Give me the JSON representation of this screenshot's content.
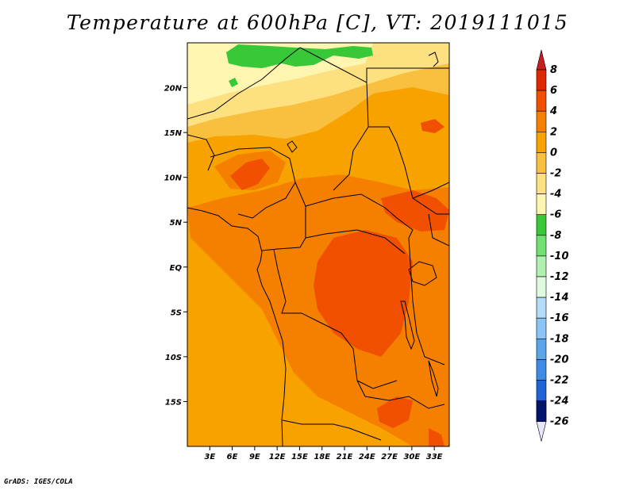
{
  "chart_data": {
    "type": "heatmap",
    "title": "Temperature at 600hPa [C], VT: 2019111015",
    "variable": "Temperature",
    "units": "C",
    "level": "600hPa",
    "valid_time": "2019111015",
    "credit": "GrADS: IGES/COLA",
    "xaxis": {
      "range": [
        0,
        35
      ],
      "ticks": [
        3,
        6,
        9,
        12,
        15,
        18,
        21,
        24,
        27,
        30,
        33
      ],
      "tick_labels": [
        "3E",
        "6E",
        "9E",
        "12E",
        "15E",
        "18E",
        "21E",
        "24E",
        "27E",
        "30E",
        "33E"
      ]
    },
    "yaxis": {
      "range": [
        -20,
        25
      ],
      "ticks": [
        20,
        15,
        10,
        5,
        0,
        -5,
        -10,
        -15
      ],
      "tick_labels": [
        "20N",
        "15N",
        "10N",
        "5N",
        "EQ",
        "5S",
        "10S",
        "15S"
      ]
    },
    "colorbar": {
      "levels": [
        8,
        6,
        4,
        2,
        0,
        -2,
        -4,
        -6,
        -8,
        -10,
        -12,
        -14,
        -16,
        -18,
        -20,
        -22,
        -24,
        -26
      ],
      "labels": [
        "8",
        "6",
        "4",
        "2",
        "0",
        "-2",
        "-4",
        "-6",
        "-8",
        "-10",
        "-12",
        "-14",
        "-16",
        "-18",
        "-20",
        "-22",
        "-24",
        "-26"
      ],
      "colors": [
        "#e02800",
        "#f05000",
        "#f58000",
        "#f8a200",
        "#f9c040",
        "#fde080",
        "#fef5b0",
        "#38c838",
        "#70e070",
        "#b0f0b0",
        "#e0fae0",
        "#b4dcf8",
        "#8cc4f5",
        "#5aa5ec",
        "#3c8ce6",
        "#1e64d2",
        "#0a3cb4",
        "#00146e"
      ],
      "top_overflow_color": "#c81e1e",
      "bottom_overflow_color": "#e6e6fa"
    },
    "field_colors": {
      "mid_bin": "#f8a200",
      "warm_bin": "#f58000",
      "hot_bin": "#f05000",
      "cool_bin": "#f9c040",
      "cold_bin": "#fde080",
      "coldest_bin": "#fef5b0",
      "green_bin": "#38c838"
    }
  }
}
